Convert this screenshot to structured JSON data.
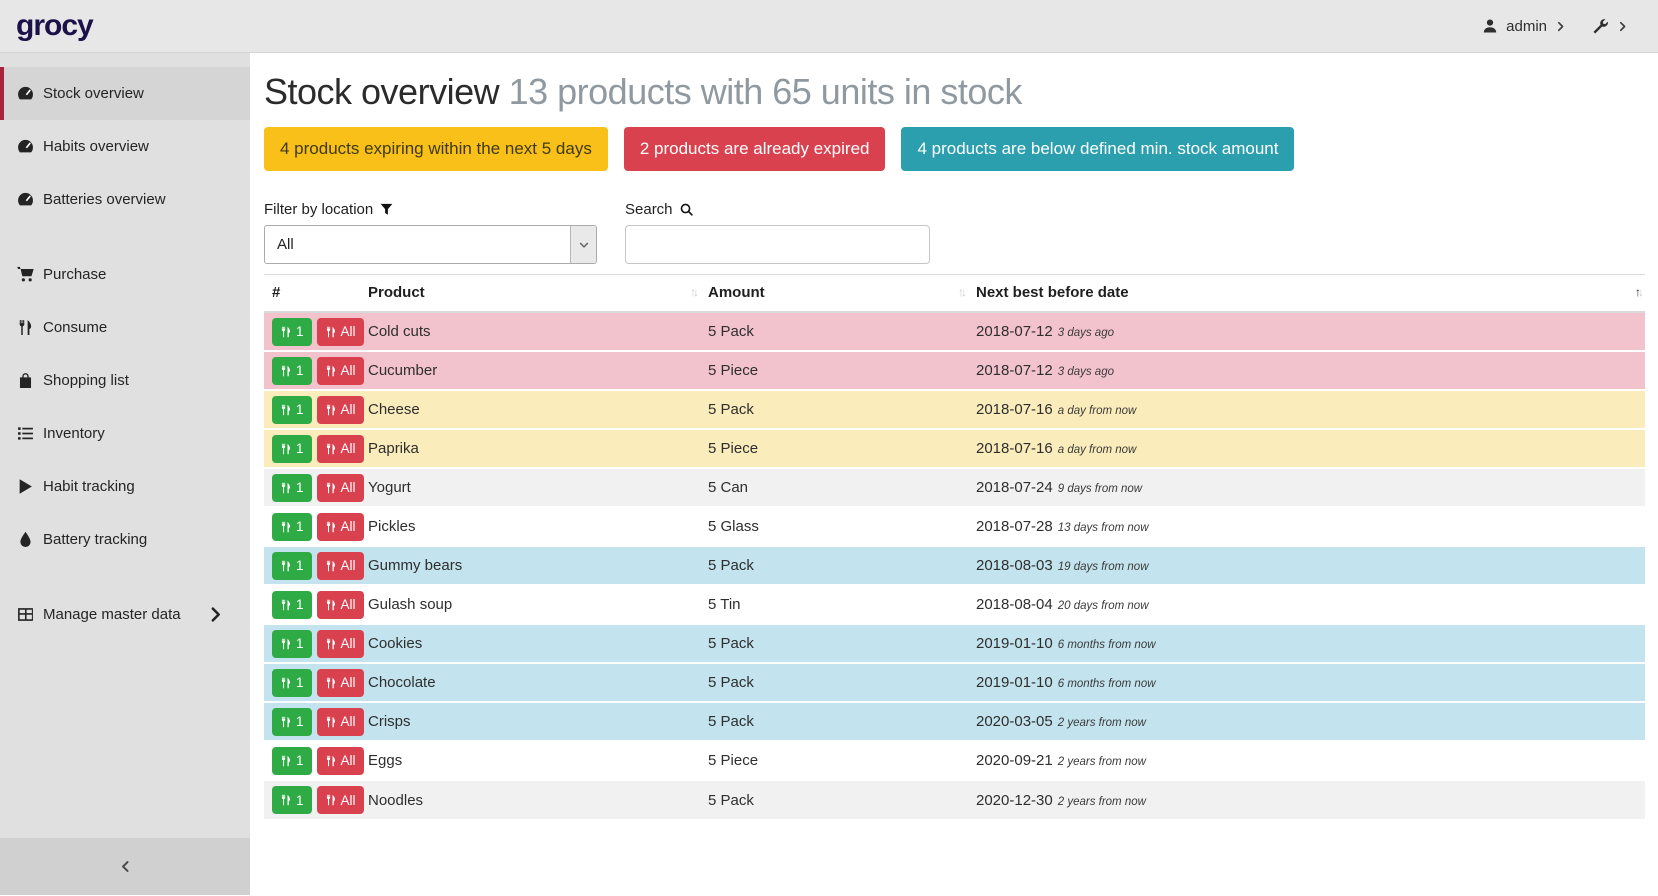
{
  "topbar": {
    "logo": "grocy",
    "user": "admin"
  },
  "sidebar": {
    "items": [
      {
        "label": "Stock overview",
        "icon": "gauge",
        "active": true
      },
      {
        "label": "Habits overview",
        "icon": "gauge"
      },
      {
        "label": "Batteries overview",
        "icon": "gauge",
        "gap_after": true
      },
      {
        "label": "Purchase",
        "icon": "cart"
      },
      {
        "label": "Consume",
        "icon": "utensils"
      },
      {
        "label": "Shopping list",
        "icon": "bag"
      },
      {
        "label": "Inventory",
        "icon": "list"
      },
      {
        "label": "Habit tracking",
        "icon": "play"
      },
      {
        "label": "Battery tracking",
        "icon": "drop",
        "gap_after": true
      },
      {
        "label": "Manage master data",
        "icon": "table",
        "chevron": true
      }
    ]
  },
  "header": {
    "title": "Stock overview",
    "subtitle": "13 products with 65 units in stock"
  },
  "badges": [
    {
      "name": "expiring-badge",
      "kind": "warning",
      "label": "4 products expiring within the next 5 days"
    },
    {
      "name": "expired-badge",
      "kind": "danger",
      "label": "2 products are already expired"
    },
    {
      "name": "below-min-stock-badge",
      "kind": "info",
      "label": "4 products are below defined min. stock amount"
    }
  ],
  "filters": {
    "location_label": "Filter by location",
    "location_value": "All",
    "search_label": "Search",
    "search_value": ""
  },
  "table": {
    "columns": [
      {
        "key": "number",
        "label": "#",
        "sortable": false
      },
      {
        "key": "product",
        "label": "Product",
        "sort": "none"
      },
      {
        "key": "amount",
        "label": "Amount",
        "sort": "none"
      },
      {
        "key": "next-best-before-date",
        "label": "Next best before date",
        "sort": "asc"
      }
    ],
    "row_buttons": {
      "consume_one": "1",
      "consume_all": "All"
    },
    "rows": [
      {
        "product": "Cold cuts",
        "amount": "5 Pack",
        "date": "2018-07-12",
        "relative": "3 days ago",
        "status": "expired"
      },
      {
        "product": "Cucumber",
        "amount": "5 Piece",
        "date": "2018-07-12",
        "relative": "3 days ago",
        "status": "expired"
      },
      {
        "product": "Cheese",
        "amount": "5 Pack",
        "date": "2018-07-16",
        "relative": "a day from now",
        "status": "expiring"
      },
      {
        "product": "Paprika",
        "amount": "5 Piece",
        "date": "2018-07-16",
        "relative": "a day from now",
        "status": "expiring"
      },
      {
        "product": "Yogurt",
        "amount": "5 Can",
        "date": "2018-07-24",
        "relative": "9 days from now",
        "status": "none"
      },
      {
        "product": "Pickles",
        "amount": "5 Glass",
        "date": "2018-07-28",
        "relative": "13 days from now",
        "status": "none"
      },
      {
        "product": "Gummy bears",
        "amount": "5 Pack",
        "date": "2018-08-03",
        "relative": "19 days from now",
        "status": "below-min"
      },
      {
        "product": "Gulash soup",
        "amount": "5 Tin",
        "date": "2018-08-04",
        "relative": "20 days from now",
        "status": "none"
      },
      {
        "product": "Cookies",
        "amount": "5 Pack",
        "date": "2019-01-10",
        "relative": "6 months from now",
        "status": "below-min"
      },
      {
        "product": "Chocolate",
        "amount": "5 Pack",
        "date": "2019-01-10",
        "relative": "6 months from now",
        "status": "below-min"
      },
      {
        "product": "Crisps",
        "amount": "5 Pack",
        "date": "2020-03-05",
        "relative": "2 years from now",
        "status": "below-min"
      },
      {
        "product": "Eggs",
        "amount": "5 Piece",
        "date": "2020-09-21",
        "relative": "2 years from now",
        "status": "none"
      },
      {
        "product": "Noodles",
        "amount": "5 Pack",
        "date": "2020-12-30",
        "relative": "2 years from now",
        "status": "none"
      }
    ]
  },
  "colors": {
    "logo_navy": "#1c1148",
    "accent_red": "#a8243c",
    "badge_warning": "#f8c018",
    "badge_danger": "#d9414e",
    "badge_info": "#2b9fae",
    "btn_green": "#2eab44",
    "btn_red": "#d9414e",
    "row_expired": "#f3c3cd",
    "row_expiring": "#fbecbb",
    "row_below_min": "#c3e4ee"
  }
}
